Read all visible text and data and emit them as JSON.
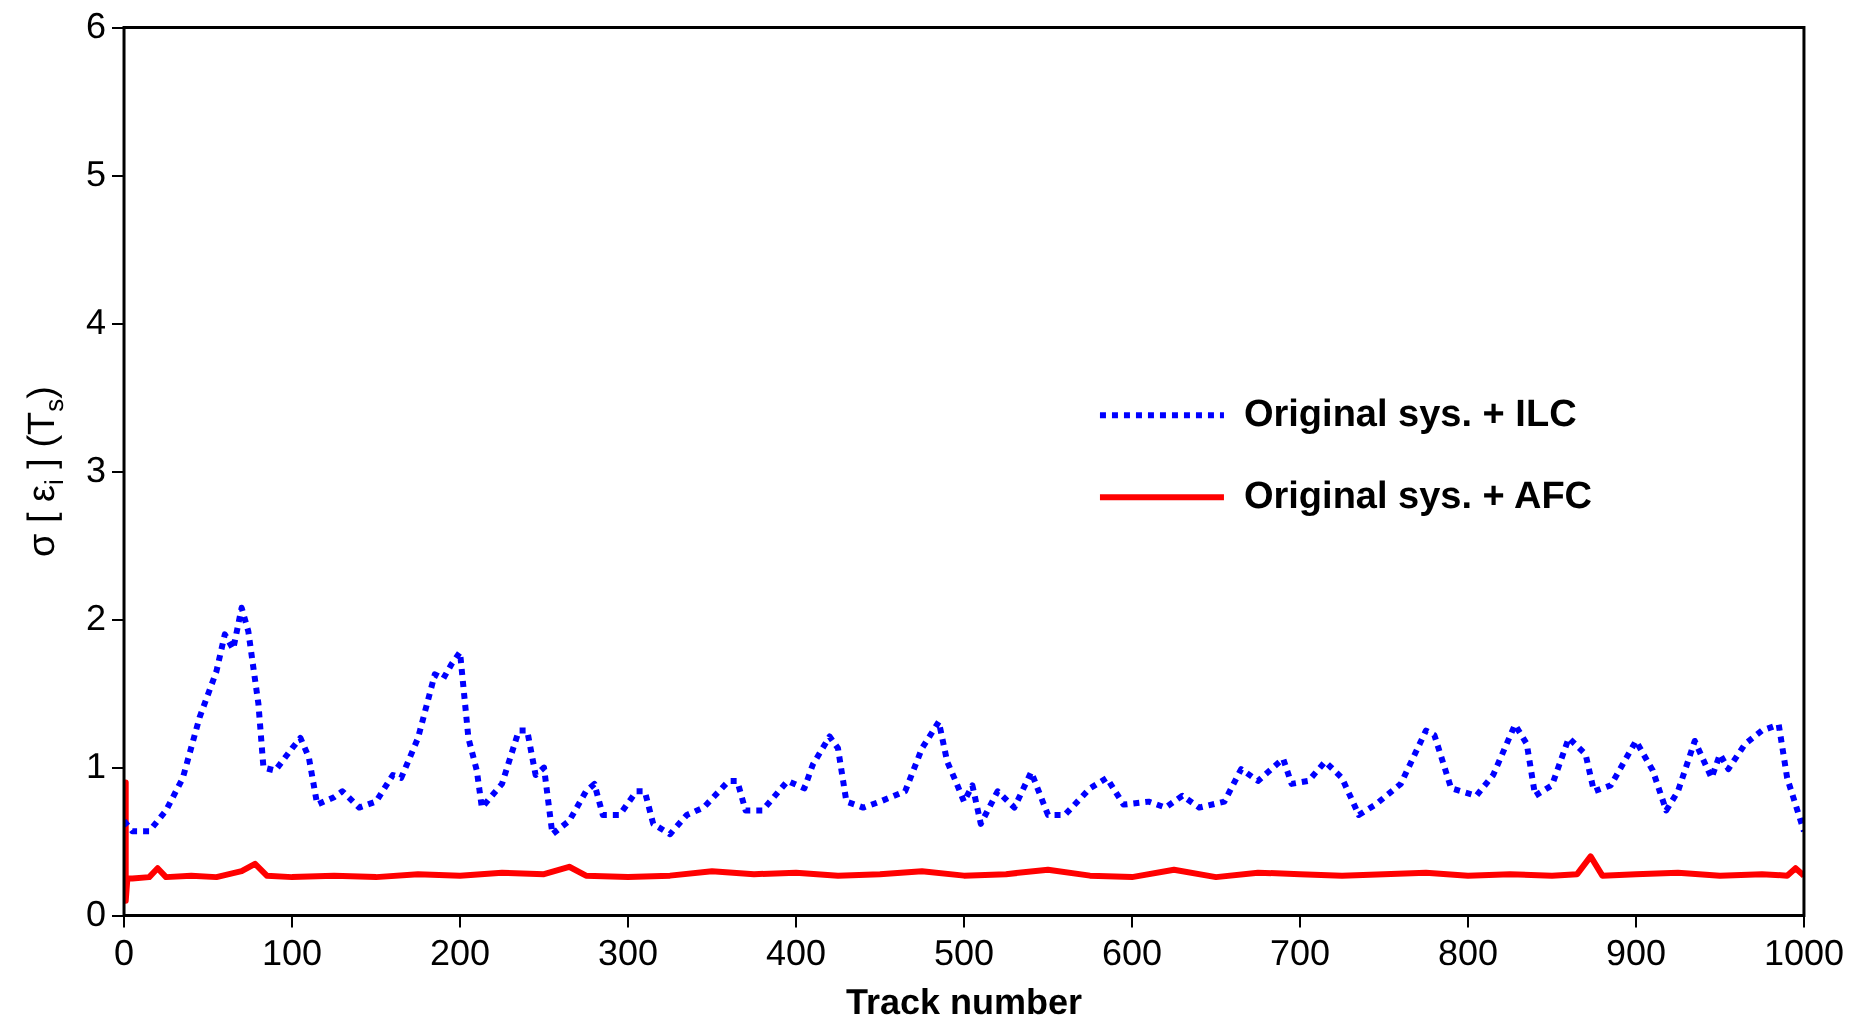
{
  "chart_data": {
    "type": "line",
    "xlabel": "Track number",
    "ylabel": "σ [ ε$_{i}$ ] (T$_{s}$)",
    "xlim": [
      0,
      1000
    ],
    "xticks": [
      0,
      100,
      200,
      300,
      400,
      500,
      600,
      700,
      800,
      900,
      1000
    ],
    "ylim": [
      0,
      6
    ],
    "yticks": [
      0,
      1,
      2,
      3,
      4,
      5,
      6
    ],
    "grid": false,
    "legend": "right",
    "marker": "none",
    "series": [
      {
        "name": "Original sys. + ILC",
        "color": "#0000ff",
        "line_style": "dotted",
        "x": [
          0,
          5,
          15,
          25,
          35,
          45,
          55,
          60,
          65,
          70,
          74,
          80,
          83,
          90,
          100,
          105,
          110,
          115,
          125,
          130,
          140,
          150,
          160,
          165,
          175,
          185,
          190,
          195,
          200,
          205,
          210,
          213,
          225,
          235,
          240,
          245,
          250,
          255,
          265,
          275,
          280,
          285,
          295,
          305,
          310,
          315,
          325,
          335,
          345,
          360,
          365,
          370,
          380,
          395,
          405,
          410,
          420,
          425,
          430,
          440,
          450,
          465,
          475,
          485,
          490,
          495,
          500,
          505,
          510,
          520,
          530,
          540,
          550,
          560,
          575,
          585,
          595,
          610,
          620,
          630,
          640,
          655,
          665,
          675,
          690,
          695,
          705,
          715,
          725,
          735,
          745,
          760,
          775,
          780,
          790,
          805,
          815,
          828,
          835,
          840,
          850,
          860,
          870,
          875,
          885,
          900,
          910,
          918,
          925,
          935,
          945,
          950,
          955,
          965,
          975,
          985,
          990,
          1000
        ],
        "values": [
          0.64,
          0.57,
          0.57,
          0.71,
          0.93,
          1.34,
          1.65,
          1.9,
          1.8,
          2.08,
          1.92,
          1.43,
          1.0,
          0.98,
          1.13,
          1.2,
          1.07,
          0.75,
          0.8,
          0.84,
          0.73,
          0.77,
          0.95,
          0.93,
          1.2,
          1.63,
          1.6,
          1.7,
          1.78,
          1.2,
          0.98,
          0.73,
          0.89,
          1.25,
          1.25,
          0.95,
          1.0,
          0.55,
          0.64,
          0.84,
          0.89,
          0.68,
          0.68,
          0.84,
          0.84,
          0.62,
          0.55,
          0.68,
          0.73,
          0.91,
          0.91,
          0.71,
          0.71,
          0.91,
          0.86,
          1.02,
          1.21,
          1.13,
          0.77,
          0.73,
          0.77,
          0.84,
          1.13,
          1.31,
          1.04,
          0.91,
          0.77,
          0.88,
          0.62,
          0.84,
          0.73,
          0.97,
          0.68,
          0.68,
          0.86,
          0.93,
          0.75,
          0.77,
          0.73,
          0.81,
          0.73,
          0.77,
          0.99,
          0.91,
          1.06,
          0.89,
          0.91,
          1.04,
          0.93,
          0.68,
          0.75,
          0.89,
          1.25,
          1.22,
          0.86,
          0.81,
          0.95,
          1.29,
          1.16,
          0.81,
          0.88,
          1.2,
          1.09,
          0.84,
          0.88,
          1.18,
          0.98,
          0.71,
          0.84,
          1.18,
          0.93,
          1.09,
          0.99,
          1.16,
          1.25,
          1.29,
          0.93,
          0.57
        ]
      },
      {
        "name": "Original sys. + AFC",
        "color": "#ff0000",
        "line_style": "solid",
        "x": [
          0,
          1,
          2,
          5,
          15,
          20,
          25,
          40,
          55,
          70,
          78,
          85,
          100,
          125,
          150,
          175,
          200,
          225,
          250,
          265,
          275,
          300,
          325,
          350,
          375,
          400,
          425,
          450,
          475,
          500,
          525,
          550,
          575,
          600,
          625,
          650,
          675,
          700,
          725,
          750,
          775,
          800,
          825,
          850,
          865,
          873,
          880,
          900,
          925,
          950,
          975,
          990,
          995,
          1000
        ],
        "values": [
          0.9,
          0.1,
          0.25,
          0.25,
          0.26,
          0.32,
          0.26,
          0.27,
          0.26,
          0.3,
          0.35,
          0.27,
          0.26,
          0.27,
          0.26,
          0.28,
          0.27,
          0.29,
          0.28,
          0.33,
          0.27,
          0.26,
          0.27,
          0.3,
          0.28,
          0.29,
          0.27,
          0.28,
          0.3,
          0.27,
          0.28,
          0.31,
          0.27,
          0.26,
          0.31,
          0.26,
          0.29,
          0.28,
          0.27,
          0.28,
          0.29,
          0.27,
          0.28,
          0.27,
          0.28,
          0.4,
          0.27,
          0.28,
          0.29,
          0.27,
          0.28,
          0.27,
          0.32,
          0.27
        ]
      }
    ]
  }
}
